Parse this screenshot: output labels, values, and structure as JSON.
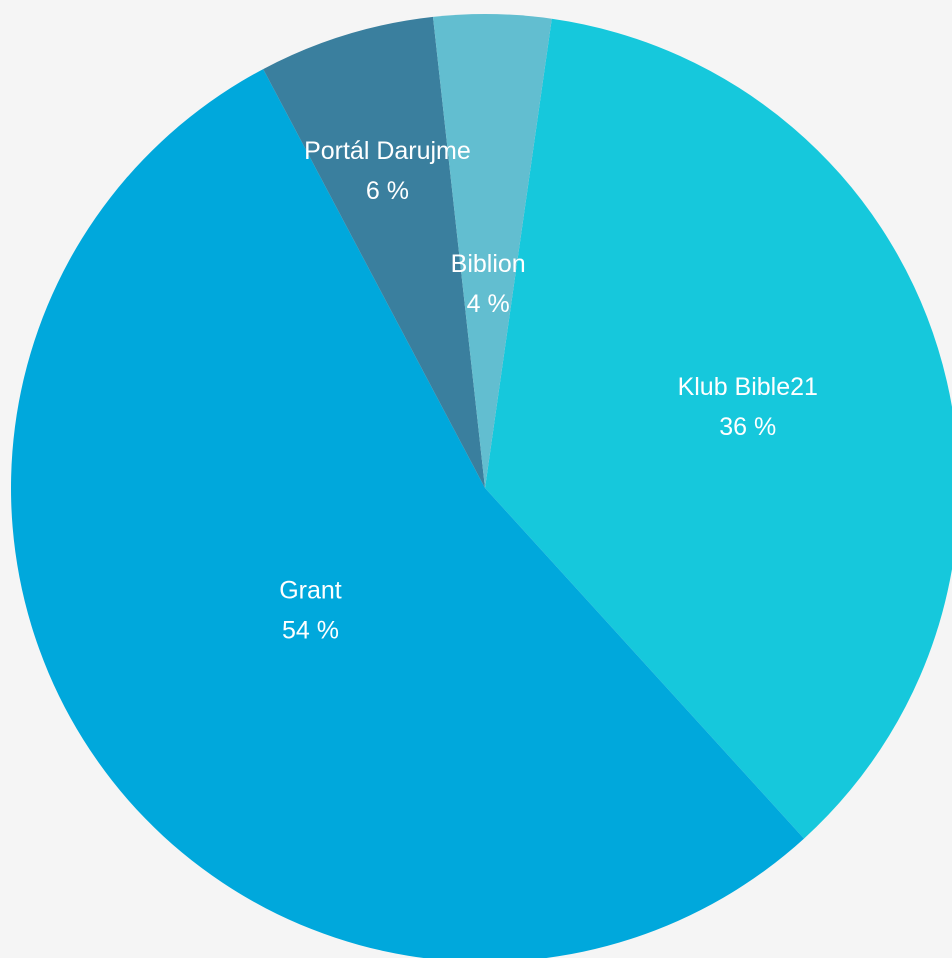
{
  "chart_data": {
    "type": "pie",
    "title": "",
    "slices": [
      {
        "label": "Klub Bible21",
        "value": 36,
        "value_label": "36 %",
        "color": "#16c8dc"
      },
      {
        "label": "Grant",
        "value": 54,
        "value_label": "54 %",
        "color": "#00a8dc"
      },
      {
        "label": "Portál Darujme",
        "value": 6,
        "value_label": "6 %",
        "color": "#3a7f9e"
      },
      {
        "label": "Biblion",
        "value": 4,
        "value_label": "4 %",
        "color": "#62bed0"
      }
    ],
    "legend": "none"
  }
}
